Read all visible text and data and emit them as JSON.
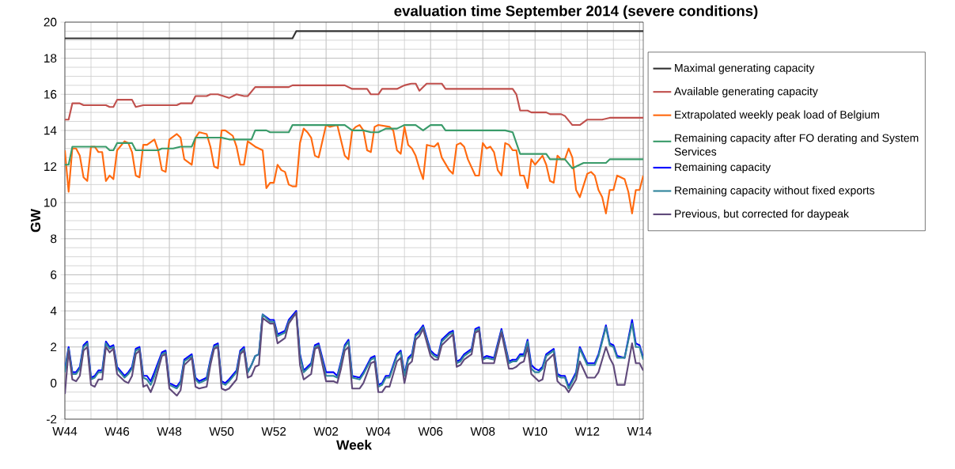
{
  "chart_data": {
    "type": "line",
    "title": "evaluation time September 2014 (severe conditions)",
    "xlabel": "Week",
    "ylabel": "GW",
    "xlim": [
      "2014-10-27",
      "2015-03-31"
    ],
    "ylim": [
      -2,
      20
    ],
    "xticks": [
      {
        "value": "2014-10-27",
        "label": "W44"
      },
      {
        "value": "2014-11-10",
        "label": "W46"
      },
      {
        "value": "2014-11-24",
        "label": "W48"
      },
      {
        "value": "2014-12-08",
        "label": "W50"
      },
      {
        "value": "2014-12-22",
        "label": "W52"
      },
      {
        "value": "2015-01-05",
        "label": "W02"
      },
      {
        "value": "2015-01-19",
        "label": "W04"
      },
      {
        "value": "2015-02-02",
        "label": "W06"
      },
      {
        "value": "2015-02-16",
        "label": "W08"
      },
      {
        "value": "2015-03-02",
        "label": "W10"
      },
      {
        "value": "2015-03-16",
        "label": "W12"
      },
      {
        "value": "2015-03-30",
        "label": "W14"
      }
    ],
    "yticks": [
      -2,
      0,
      2,
      4,
      6,
      8,
      10,
      12,
      14,
      16,
      18,
      20
    ],
    "grid": true,
    "legend": "right",
    "x": [
      "2014-10-27",
      "2014-10-28",
      "2014-10-29",
      "2014-10-30",
      "2014-10-31",
      "2014-11-01",
      "2014-11-02",
      "2014-11-03",
      "2014-11-04",
      "2014-11-05",
      "2014-11-06",
      "2014-11-07",
      "2014-11-08",
      "2014-11-09",
      "2014-11-10",
      "2014-11-12",
      "2014-11-13",
      "2014-11-14",
      "2014-11-15",
      "2014-11-16",
      "2014-11-17",
      "2014-11-18",
      "2014-11-19",
      "2014-11-20",
      "2014-11-22",
      "2014-11-23",
      "2014-11-24",
      "2014-11-26",
      "2014-11-27",
      "2014-11-28",
      "2014-11-30",
      "2014-12-01",
      "2014-12-02",
      "2014-12-04",
      "2014-12-05",
      "2014-12-06",
      "2014-12-07",
      "2014-12-08",
      "2014-12-09",
      "2014-12-10",
      "2014-12-12",
      "2014-12-13",
      "2014-12-14",
      "2014-12-15",
      "2014-12-16",
      "2014-12-17",
      "2014-12-18",
      "2014-12-19",
      "2014-12-21",
      "2014-12-22",
      "2014-12-23",
      "2014-12-25",
      "2014-12-26",
      "2014-12-28",
      "2014-12-29",
      "2014-12-30",
      "2015-01-01",
      "2015-01-02",
      "2015-01-03",
      "2015-01-05",
      "2015-01-07",
      "2015-01-08",
      "2015-01-09",
      "2015-01-10",
      "2015-01-11",
      "2015-01-12",
      "2015-01-14",
      "2015-01-15",
      "2015-01-17",
      "2015-01-18",
      "2015-01-19",
      "2015-01-20",
      "2015-01-21",
      "2015-01-22",
      "2015-01-24",
      "2015-01-25",
      "2015-01-26",
      "2015-01-27",
      "2015-01-28",
      "2015-01-29",
      "2015-01-30",
      "2015-01-31",
      "2015-02-02",
      "2015-02-03",
      "2015-02-04",
      "2015-02-05",
      "2015-02-07",
      "2015-02-08",
      "2015-02-09",
      "2015-02-10",
      "2015-02-11",
      "2015-02-13",
      "2015-02-14",
      "2015-02-15",
      "2015-02-16",
      "2015-02-17",
      "2015-02-19",
      "2015-02-21",
      "2015-02-23",
      "2015-02-24",
      "2015-02-25",
      "2015-02-26",
      "2015-02-27",
      "2015-02-28",
      "2015-03-01",
      "2015-03-02",
      "2015-03-03",
      "2015-03-04",
      "2015-03-05",
      "2015-03-07",
      "2015-03-08",
      "2015-03-09",
      "2015-03-10",
      "2015-03-11",
      "2015-03-13",
      "2015-03-14",
      "2015-03-16",
      "2015-03-17",
      "2015-03-18",
      "2015-03-19",
      "2015-03-21",
      "2015-03-22",
      "2015-03-23",
      "2015-03-24",
      "2015-03-26",
      "2015-03-28",
      "2015-03-29",
      "2015-03-30",
      "2015-03-31"
    ],
    "series": [
      {
        "name": "Maximal generating capacity",
        "color": "#333333",
        "x": [
          "2014-10-27",
          "2014-12-27",
          "2014-12-28",
          "2015-03-31"
        ],
        "values": [
          19.1,
          19.1,
          19.5,
          19.5
        ]
      },
      {
        "name": "Available generating capacity",
        "color": "#c0504d",
        "x": [
          "2014-10-27",
          "2014-10-28",
          "2014-10-29",
          "2014-10-31",
          "2014-11-01",
          "2014-11-07",
          "2014-11-08",
          "2014-11-09",
          "2014-11-10",
          "2014-11-14",
          "2014-11-15",
          "2014-11-17",
          "2014-11-25",
          "2014-11-26",
          "2014-11-27",
          "2014-11-30",
          "2014-12-01",
          "2014-12-04",
          "2014-12-05",
          "2014-12-07",
          "2014-12-10",
          "2014-12-12",
          "2014-12-14",
          "2014-12-15",
          "2014-12-17",
          "2014-12-26",
          "2014-12-27",
          "2015-01-07",
          "2015-01-10",
          "2015-01-12",
          "2015-01-16",
          "2015-01-17",
          "2015-01-19",
          "2015-01-20",
          "2015-01-24",
          "2015-01-26",
          "2015-01-28",
          "2015-01-29",
          "2015-01-30",
          "2015-02-01",
          "2015-02-05",
          "2015-02-06",
          "2015-02-24",
          "2015-02-25",
          "2015-02-26",
          "2015-02-28",
          "2015-03-01",
          "2015-03-05",
          "2015-03-06",
          "2015-03-09",
          "2015-03-10",
          "2015-03-12",
          "2015-03-14",
          "2015-03-16",
          "2015-03-19",
          "2015-03-20",
          "2015-03-22",
          "2015-03-31"
        ],
        "values": [
          14.6,
          14.6,
          15.5,
          15.5,
          15.4,
          15.4,
          15.3,
          15.3,
          15.7,
          15.7,
          15.3,
          15.4,
          15.4,
          15.4,
          15.5,
          15.5,
          15.9,
          15.9,
          16.0,
          16.0,
          15.8,
          16.0,
          15.9,
          15.9,
          16.4,
          16.4,
          16.5,
          16.5,
          16.5,
          16.3,
          16.3,
          16.0,
          16.0,
          16.3,
          16.3,
          16.5,
          16.6,
          16.6,
          16.2,
          16.6,
          16.6,
          16.3,
          16.3,
          16.0,
          15.1,
          15.1,
          15.0,
          15.0,
          14.9,
          14.9,
          14.8,
          14.3,
          14.3,
          14.6,
          14.6,
          14.6,
          14.7,
          14.7
        ]
      },
      {
        "name": "Extrapolated weekly peak load of Belgium",
        "color": "#ff6a10",
        "x": [
          "2014-10-27",
          "2014-10-28",
          "2014-10-29",
          "2014-10-30",
          "2014-10-31",
          "2014-11-01",
          "2014-11-02",
          "2014-11-03",
          "2014-11-04",
          "2014-11-05",
          "2014-11-06",
          "2014-11-07",
          "2014-11-08",
          "2014-11-09",
          "2014-11-10",
          "2014-11-12",
          "2014-11-13",
          "2014-11-14",
          "2014-11-15",
          "2014-11-16",
          "2014-11-17",
          "2014-11-18",
          "2014-11-20",
          "2014-11-21",
          "2014-11-22",
          "2014-11-23",
          "2014-11-24",
          "2014-11-26",
          "2014-11-27",
          "2014-11-28",
          "2014-11-30",
          "2014-12-01",
          "2014-12-02",
          "2014-12-04",
          "2014-12-05",
          "2014-12-06",
          "2014-12-07",
          "2014-12-08",
          "2014-12-09",
          "2014-12-11",
          "2014-12-12",
          "2014-12-13",
          "2014-12-14",
          "2014-12-15",
          "2014-12-17",
          "2014-12-19",
          "2014-12-20",
          "2014-12-21",
          "2014-12-22",
          "2014-12-23",
          "2014-12-24",
          "2014-12-25",
          "2014-12-26",
          "2014-12-27",
          "2014-12-28",
          "2014-12-29",
          "2014-12-30",
          "2014-12-31",
          "2015-01-01",
          "2015-01-02",
          "2015-01-03",
          "2015-01-05",
          "2015-01-06",
          "2015-01-08",
          "2015-01-10",
          "2015-01-11",
          "2015-01-12",
          "2015-01-13",
          "2015-01-14",
          "2015-01-15",
          "2015-01-16",
          "2015-01-17",
          "2015-01-18",
          "2015-01-19",
          "2015-01-22",
          "2015-01-23",
          "2015-01-24",
          "2015-01-25",
          "2015-01-26",
          "2015-01-27",
          "2015-01-28",
          "2015-01-29",
          "2015-01-30",
          "2015-01-31",
          "2015-02-01",
          "2015-02-03",
          "2015-02-04",
          "2015-02-05",
          "2015-02-07",
          "2015-02-08",
          "2015-02-09",
          "2015-02-10",
          "2015-02-11",
          "2015-02-12",
          "2015-02-14",
          "2015-02-15",
          "2015-02-16",
          "2015-02-17",
          "2015-02-18",
          "2015-02-19",
          "2015-02-20",
          "2015-02-21",
          "2015-02-22",
          "2015-02-23",
          "2015-02-24",
          "2015-02-25",
          "2015-02-26",
          "2015-02-27",
          "2015-02-28",
          "2015-03-01",
          "2015-03-02",
          "2015-03-04",
          "2015-03-05",
          "2015-03-06",
          "2015-03-07",
          "2015-03-08",
          "2015-03-09",
          "2015-03-10",
          "2015-03-11",
          "2015-03-12",
          "2015-03-13",
          "2015-03-14",
          "2015-03-16",
          "2015-03-17",
          "2015-03-18",
          "2015-03-19",
          "2015-03-20",
          "2015-03-21",
          "2015-03-22",
          "2015-03-23",
          "2015-03-24",
          "2015-03-26",
          "2015-03-27",
          "2015-03-28",
          "2015-03-29",
          "2015-03-30",
          "2015-03-31"
        ],
        "values": [
          12.9,
          10.6,
          13.0,
          13.0,
          12.6,
          11.4,
          11.2,
          13.1,
          13.1,
          12.8,
          12.8,
          11.2,
          11.5,
          11.3,
          12.9,
          13.4,
          13.3,
          12.8,
          11.5,
          11.4,
          13.2,
          13.2,
          13.5,
          12.9,
          11.8,
          11.7,
          13.5,
          13.8,
          13.6,
          12.4,
          12.1,
          13.6,
          13.9,
          13.8,
          13.1,
          12.0,
          11.9,
          14.0,
          14.0,
          13.7,
          13.1,
          12.1,
          12.1,
          13.4,
          13.1,
          12.9,
          10.8,
          11.1,
          11.1,
          12.1,
          11.8,
          11.7,
          11.0,
          10.9,
          10.9,
          13.3,
          14.1,
          13.9,
          13.6,
          12.6,
          12.5,
          14.3,
          14.2,
          14.3,
          12.6,
          12.4,
          14.0,
          14.2,
          14.3,
          14.0,
          12.9,
          12.8,
          14.2,
          14.3,
          14.2,
          14.0,
          12.9,
          12.7,
          14.2,
          13.2,
          13.0,
          12.6,
          11.9,
          11.3,
          13.2,
          13.1,
          13.3,
          12.5,
          11.8,
          11.6,
          13.2,
          13.3,
          13.1,
          12.4,
          11.5,
          11.5,
          13.3,
          13.0,
          13.1,
          12.8,
          11.8,
          11.5,
          13.3,
          13.2,
          12.9,
          12.9,
          11.5,
          11.5,
          10.8,
          12.4,
          12.1,
          12.6,
          12.1,
          11.2,
          11.1,
          12.6,
          12.4,
          12.4,
          13.0,
          12.5,
          10.7,
          10.3,
          11.6,
          11.7,
          11.5,
          10.7,
          10.3,
          9.4,
          10.7,
          10.7,
          11.5,
          11.3,
          10.6,
          9.4,
          10.7,
          10.7,
          11.5
        ]
      },
      {
        "name": "Remaining capacity after FO  derating and System Services",
        "color": "#3a9b6a",
        "x": [
          "2014-10-27",
          "2014-10-28",
          "2014-10-29",
          "2014-11-07",
          "2014-11-08",
          "2014-11-09",
          "2014-11-10",
          "2014-11-14",
          "2014-11-15",
          "2014-11-21",
          "2014-11-22",
          "2014-11-25",
          "2014-11-27",
          "2014-11-30",
          "2014-12-01",
          "2014-12-08",
          "2014-12-10",
          "2014-12-11",
          "2014-12-16",
          "2014-12-17",
          "2014-12-20",
          "2014-12-21",
          "2014-12-26",
          "2014-12-27",
          "2015-01-10",
          "2015-01-12",
          "2015-01-15",
          "2015-01-17",
          "2015-01-19",
          "2015-01-21",
          "2015-01-24",
          "2015-01-26",
          "2015-01-29",
          "2015-01-31",
          "2015-02-02",
          "2015-02-05",
          "2015-02-06",
          "2015-02-22",
          "2015-02-24",
          "2015-02-26",
          "2015-03-05",
          "2015-03-06",
          "2015-03-10",
          "2015-03-12",
          "2015-03-15",
          "2015-03-21",
          "2015-03-22",
          "2015-03-31"
        ],
        "values": [
          12.1,
          12.1,
          13.1,
          13.1,
          12.9,
          12.9,
          13.3,
          13.3,
          12.9,
          12.9,
          13.0,
          13.0,
          13.1,
          13.1,
          13.6,
          13.6,
          13.5,
          13.5,
          13.5,
          14.0,
          14.0,
          13.9,
          13.9,
          14.3,
          14.3,
          14.0,
          14.0,
          13.9,
          13.9,
          14.1,
          14.1,
          14.3,
          14.3,
          14.0,
          14.3,
          14.3,
          14.0,
          14.0,
          13.9,
          12.7,
          12.7,
          12.4,
          12.4,
          11.9,
          12.2,
          12.2,
          12.4,
          12.4
        ]
      },
      {
        "name": "Remaining capacity",
        "color": "#0000ff",
        "values": [
          0.7,
          2.0,
          0.6,
          0.6,
          0.9,
          2.1,
          2.3,
          0.3,
          0.4,
          0.7,
          0.7,
          2.3,
          2.0,
          2.1,
          0.9,
          0.4,
          0.6,
          0.9,
          1.9,
          2.0,
          0.4,
          0.4,
          0.1,
          0.6,
          1.7,
          1.8,
          0.0,
          -0.2,
          0.1,
          1.3,
          1.6,
          0.3,
          0.1,
          0.3,
          1.3,
          2.1,
          2.2,
          0.1,
          0.0,
          0.2,
          0.7,
          1.8,
          2.0,
          0.6,
          1.0,
          1.5,
          1.6,
          3.8,
          3.5,
          3.5,
          2.7,
          2.9,
          3.5,
          4.0,
          1.6,
          0.7,
          1.1,
          2.1,
          2.2,
          0.6,
          0.6,
          0.4,
          1.2,
          2.1,
          2.4,
          0.4,
          0.3,
          0.6,
          1.4,
          1.5,
          -0.1,
          0.0,
          0.4,
          0.4,
          1.6,
          1.8,
          0.5,
          1.4,
          1.6,
          2.7,
          2.9,
          3.2,
          1.8,
          1.6,
          1.5,
          2.4,
          2.8,
          2.9,
          1.2,
          1.3,
          1.6,
          1.9,
          3.0,
          3.1,
          1.4,
          1.5,
          1.4,
          3.0,
          1.2,
          1.3,
          1.3,
          1.6,
          1.6,
          2.4,
          1.0,
          0.8,
          0.7,
          0.9,
          1.6,
          1.9,
          0.5,
          0.4,
          0.4,
          -0.2,
          0.6,
          2.0,
          1.1,
          1.1,
          1.1,
          1.6,
          3.2,
          2.2,
          2.1,
          1.5,
          1.4,
          3.5,
          2.2,
          2.1,
          1.4
        ]
      },
      {
        "name": "Remaining capacity without fixed exports",
        "color": "#31859c",
        "values": [
          0.6,
          1.9,
          0.5,
          0.5,
          0.8,
          2.0,
          2.2,
          0.2,
          0.3,
          0.6,
          0.6,
          2.2,
          1.9,
          2.0,
          0.8,
          0.3,
          0.5,
          0.8,
          1.8,
          1.9,
          0.3,
          0.2,
          -0.1,
          0.4,
          1.6,
          1.7,
          -0.1,
          -0.3,
          0.0,
          1.2,
          1.5,
          0.2,
          0.0,
          0.2,
          1.2,
          2.0,
          2.1,
          0.0,
          -0.1,
          0.1,
          0.6,
          1.7,
          1.9,
          0.6,
          1.0,
          1.5,
          1.6,
          3.8,
          3.4,
          3.4,
          2.6,
          2.8,
          3.4,
          3.9,
          1.5,
          0.6,
          1.0,
          2.0,
          2.1,
          0.4,
          0.4,
          0.3,
          1.1,
          2.0,
          2.3,
          0.3,
          0.2,
          0.5,
          1.3,
          1.4,
          -0.2,
          -0.1,
          0.3,
          0.3,
          1.5,
          1.7,
          0.4,
          1.3,
          1.5,
          2.6,
          2.8,
          3.1,
          1.7,
          1.5,
          1.4,
          2.3,
          2.7,
          2.8,
          1.1,
          1.2,
          1.5,
          1.8,
          2.9,
          3.0,
          1.3,
          1.4,
          1.3,
          2.9,
          1.1,
          1.2,
          1.2,
          1.5,
          1.5,
          2.3,
          0.8,
          0.6,
          0.6,
          0.8,
          1.5,
          1.8,
          0.4,
          0.3,
          0.3,
          -0.3,
          0.5,
          1.9,
          1.0,
          1.0,
          1.0,
          1.5,
          3.1,
          2.1,
          2.0,
          1.4,
          1.4,
          3.3,
          2.0,
          2.0,
          1.3
        ]
      },
      {
        "name": "Previous, but corrected for daypeak",
        "color": "#604a7b",
        "values": [
          -0.6,
          1.8,
          0.2,
          0.1,
          0.4,
          1.8,
          2.0,
          -0.1,
          -0.2,
          0.2,
          0.2,
          2.0,
          1.7,
          1.9,
          0.5,
          0.1,
          0.0,
          0.4,
          1.6,
          1.8,
          -0.2,
          -0.1,
          -0.5,
          0.0,
          1.5,
          1.6,
          -0.3,
          -0.7,
          -0.4,
          1.0,
          1.4,
          -0.2,
          -0.3,
          -0.2,
          1.0,
          1.9,
          2.0,
          -0.3,
          -0.4,
          -0.3,
          0.2,
          1.6,
          1.8,
          0.3,
          0.4,
          0.9,
          1.0,
          3.6,
          3.3,
          3.3,
          2.2,
          2.5,
          3.3,
          3.9,
          1.0,
          0.2,
          0.5,
          1.9,
          2.0,
          0.1,
          0.1,
          0.0,
          0.8,
          1.8,
          2.0,
          -0.3,
          -0.3,
          0.0,
          1.1,
          1.2,
          -0.5,
          -0.5,
          -0.2,
          -0.2,
          1.2,
          1.4,
          0.0,
          1.0,
          1.2,
          2.4,
          2.6,
          3.0,
          1.5,
          1.3,
          1.3,
          2.1,
          2.5,
          2.7,
          0.9,
          1.0,
          1.3,
          1.6,
          2.8,
          2.9,
          1.1,
          1.1,
          1.1,
          2.8,
          0.8,
          0.8,
          0.9,
          1.1,
          1.2,
          2.0,
          0.5,
          0.3,
          0.1,
          0.2,
          1.2,
          1.6,
          0.1,
          -0.1,
          -0.2,
          -0.5,
          0.2,
          1.2,
          0.3,
          0.3,
          0.3,
          0.6,
          2.0,
          1.4,
          1.0,
          -0.1,
          -0.1,
          2.2,
          1.1,
          1.1,
          0.7
        ]
      }
    ]
  }
}
